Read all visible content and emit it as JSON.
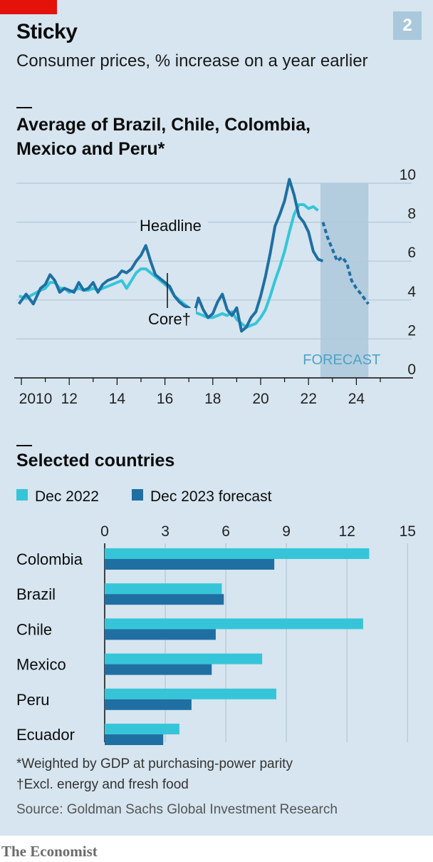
{
  "header": {
    "title": "Sticky",
    "badge": "2",
    "subtitle": "Consumer prices, % increase on a year earlier"
  },
  "chart_data": [
    {
      "type": "line",
      "title": "Average of Brazil, Chile, Colombia, Mexico and Peru*",
      "y_ticks": [
        "10",
        "8",
        "6",
        "4",
        "2",
        "0"
      ],
      "x_ticks": [
        "2010",
        "12",
        "14",
        "16",
        "18",
        "20",
        "22",
        "24"
      ],
      "ylim": [
        0,
        10
      ],
      "xlim": [
        2009.9,
        2025
      ],
      "forecast_label": "FORECAST",
      "forecast_range": [
        2022.5,
        2024.5
      ],
      "annotations": {
        "headline": "Headline",
        "core": "Core†"
      },
      "colors": {
        "headline": "#1f6fa3",
        "core": "#36c5d8",
        "forecast_band": "#adc9dc"
      },
      "series": [
        {
          "name": "Headline",
          "x": [
            2009.9,
            2010.2,
            2010.5,
            2010.8,
            2011.0,
            2011.2,
            2011.4,
            2011.6,
            2011.8,
            2012.0,
            2012.2,
            2012.4,
            2012.6,
            2012.8,
            2013.0,
            2013.2,
            2013.4,
            2013.6,
            2013.8,
            2014.0,
            2014.2,
            2014.4,
            2014.6,
            2014.8,
            2015.0,
            2015.2,
            2015.4,
            2015.6,
            2015.8,
            2016.0,
            2016.2,
            2016.4,
            2016.6,
            2016.8,
            2017.0,
            2017.2,
            2017.4,
            2017.6,
            2017.8,
            2018.0,
            2018.2,
            2018.4,
            2018.6,
            2018.8,
            2019.0,
            2019.2,
            2019.4,
            2019.6,
            2019.8,
            2020.0,
            2020.2,
            2020.4,
            2020.6,
            2020.8,
            2021.0,
            2021.2,
            2021.4,
            2021.6,
            2021.8,
            2022.0,
            2022.2,
            2022.4,
            2022.6
          ],
          "values": [
            3.8,
            4.3,
            3.8,
            4.6,
            4.8,
            5.3,
            5.0,
            4.4,
            4.6,
            4.5,
            4.4,
            4.9,
            4.5,
            4.6,
            4.9,
            4.4,
            4.8,
            5.0,
            5.1,
            5.2,
            5.5,
            5.4,
            5.6,
            6.0,
            6.3,
            6.8,
            6.0,
            5.3,
            5.1,
            4.9,
            4.7,
            4.2,
            3.9,
            3.7,
            3.6,
            3.2,
            4.1,
            3.5,
            3.1,
            3.3,
            3.9,
            4.3,
            3.5,
            3.2,
            3.6,
            2.4,
            2.6,
            3.1,
            3.4,
            4.2,
            5.2,
            6.4,
            7.8,
            8.4,
            9.1,
            10.2,
            9.4,
            8.3,
            8.0,
            7.5,
            6.5,
            6.1,
            6.0
          ]
        },
        {
          "name": "Core†",
          "x": [
            2009.9,
            2010.2,
            2010.5,
            2010.8,
            2011.0,
            2011.2,
            2011.4,
            2011.6,
            2011.8,
            2012.0,
            2012.2,
            2012.4,
            2012.6,
            2012.8,
            2013.0,
            2013.2,
            2013.4,
            2013.6,
            2013.8,
            2014.0,
            2014.2,
            2014.4,
            2014.6,
            2014.8,
            2015.0,
            2015.2,
            2015.4,
            2015.6,
            2015.8,
            2016.0,
            2016.2,
            2016.4,
            2016.6,
            2016.8,
            2017.0,
            2017.2,
            2017.4,
            2017.6,
            2017.8,
            2018.0,
            2018.2,
            2018.4,
            2018.6,
            2018.8,
            2019.0,
            2019.2,
            2019.4,
            2019.6,
            2019.8,
            2020.0,
            2020.2,
            2020.4,
            2020.6,
            2020.8,
            2021.0,
            2021.2,
            2021.4,
            2021.6,
            2021.8,
            2022.0,
            2022.2,
            2022.4
          ],
          "values": [
            4.2,
            4.1,
            4.3,
            4.5,
            4.6,
            4.9,
            4.9,
            4.6,
            4.6,
            4.4,
            4.5,
            4.6,
            4.5,
            4.5,
            4.6,
            4.5,
            4.6,
            4.7,
            4.8,
            4.9,
            5.0,
            4.6,
            5.0,
            5.4,
            5.6,
            5.6,
            5.4,
            5.2,
            5.0,
            4.8,
            4.6,
            4.2,
            4.0,
            3.8,
            3.6,
            3.4,
            3.3,
            3.2,
            3.1,
            3.1,
            3.2,
            3.3,
            3.2,
            3.4,
            3.0,
            2.8,
            2.6,
            2.7,
            2.8,
            3.1,
            3.5,
            4.2,
            5.0,
            5.7,
            6.5,
            7.5,
            8.4,
            8.9,
            8.9,
            8.7,
            8.8,
            8.6
          ]
        },
        {
          "name": "Headline forecast",
          "x": [
            2022.6,
            2022.8,
            2023.0,
            2023.2,
            2023.4,
            2023.6,
            2023.8,
            2024.0,
            2024.2,
            2024.5
          ],
          "values": [
            8.0,
            7.2,
            6.6,
            6.0,
            6.2,
            5.9,
            5.0,
            4.6,
            4.3,
            3.8
          ]
        }
      ]
    },
    {
      "type": "bar",
      "title": "Selected countries",
      "legend": [
        {
          "label": "Dec 2022",
          "color": "#36c5d8"
        },
        {
          "label": "Dec 2023 forecast",
          "color": "#1f6fa3"
        }
      ],
      "x_ticks": [
        "0",
        "3",
        "6",
        "9",
        "12",
        "15"
      ],
      "xlim": [
        0,
        15
      ],
      "categories": [
        "Colombia",
        "Brazil",
        "Chile",
        "Mexico",
        "Peru",
        "Ecuador"
      ],
      "series": [
        {
          "name": "Dec 2022",
          "values": [
            13.1,
            5.8,
            12.8,
            7.8,
            8.5,
            3.7
          ]
        },
        {
          "name": "Dec 2023 forecast",
          "values": [
            8.4,
            5.9,
            5.5,
            5.3,
            4.3,
            2.9
          ]
        }
      ]
    }
  ],
  "footnotes": {
    "star": "*Weighted by GDP at purchasing-power parity",
    "dagger": "†Excl. energy and fresh food",
    "source": "Source: Goldman Sachs Global Investment Research"
  },
  "brand": "The Economist"
}
